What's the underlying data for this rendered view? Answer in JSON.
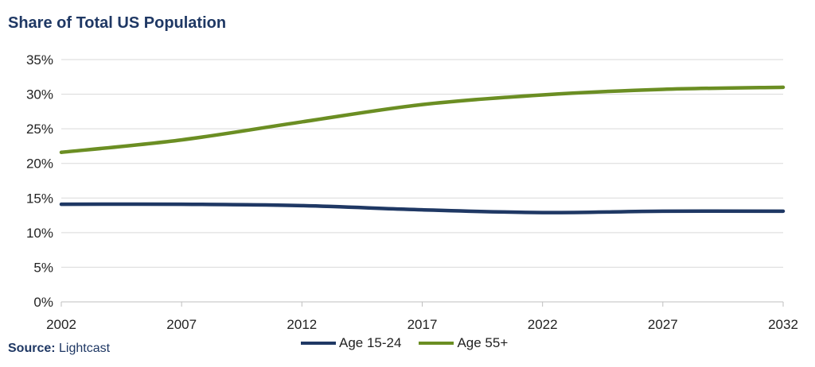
{
  "colors": {
    "title": "#1f3864",
    "grid": "#d9d9d9",
    "axis": "#bfbfbf"
  },
  "source": {
    "label": "Source:",
    "value": "Lightcast"
  },
  "chart_data": {
    "type": "line",
    "title": "Share of Total US Population",
    "xlabel": "",
    "ylabel": "",
    "x": [
      2002,
      2007,
      2012,
      2017,
      2022,
      2027,
      2032
    ],
    "x_tick_labels": [
      "2002",
      "2007",
      "2012",
      "2017",
      "2022",
      "2027",
      "2032"
    ],
    "ylim": [
      0,
      35
    ],
    "y_ticks": [
      0,
      5,
      10,
      15,
      20,
      25,
      30,
      35
    ],
    "y_tick_labels": [
      "0%",
      "5%",
      "10%",
      "15%",
      "20%",
      "25%",
      "30%",
      "35%"
    ],
    "grid": true,
    "legend_position": "bottom",
    "series": [
      {
        "name": "Age 15-24",
        "color": "#1f3864",
        "values": [
          14.1,
          14.1,
          13.9,
          13.3,
          12.9,
          13.1,
          13.1
        ]
      },
      {
        "name": "Age 55+",
        "color": "#6b8e23",
        "values": [
          21.6,
          23.4,
          26.0,
          28.5,
          29.9,
          30.7,
          31.0
        ]
      }
    ]
  }
}
